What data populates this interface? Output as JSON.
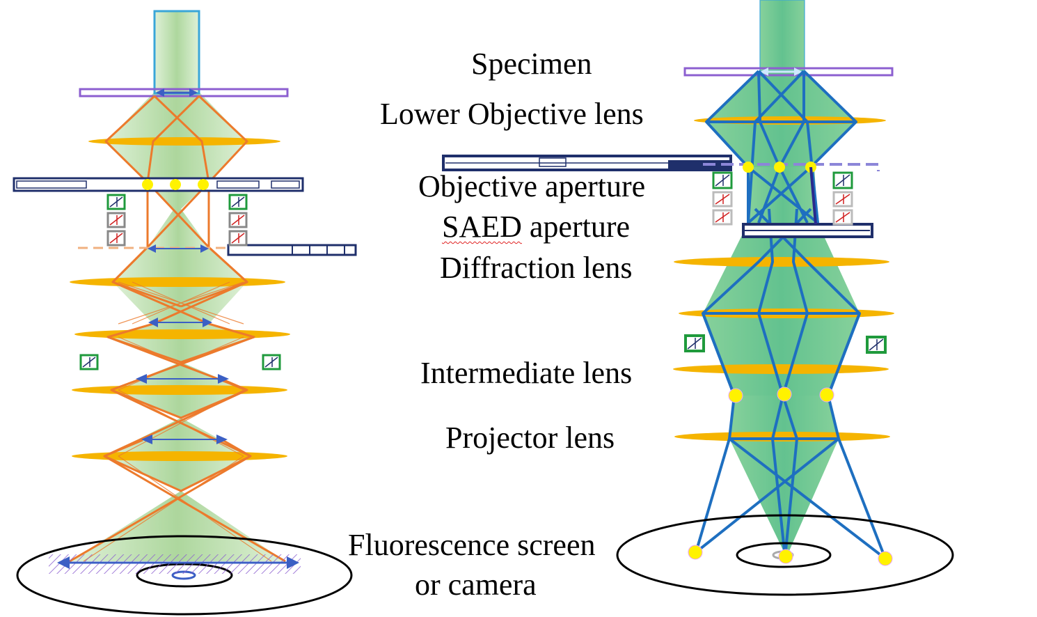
{
  "labels": {
    "specimen": "Specimen",
    "lower_objective_lens": "Lower Objective lens",
    "objective_aperture": "Objective aperture",
    "saed_word": "SAED",
    "saed_rest": " aperture",
    "diffraction_lens": "Diffraction lens",
    "intermediate_lens": "Intermediate lens",
    "projector_lens": "Projector lens",
    "screen_line1": "Fluorescence screen",
    "screen_line2": "or camera"
  },
  "colors": {
    "beam_fill": "#a9d89a",
    "lens": "#f5b400",
    "left_rays": "#ec7a2c",
    "right_rays": "#1e6fc0",
    "beam_right": "#4cc28a",
    "specimen": "#8c5fd0",
    "aperture": "#1f2f6b",
    "deflector": "#1f9a3c",
    "focus_dot": "#fff200",
    "arrow": "#3b5fc4",
    "screen": "#000000"
  }
}
